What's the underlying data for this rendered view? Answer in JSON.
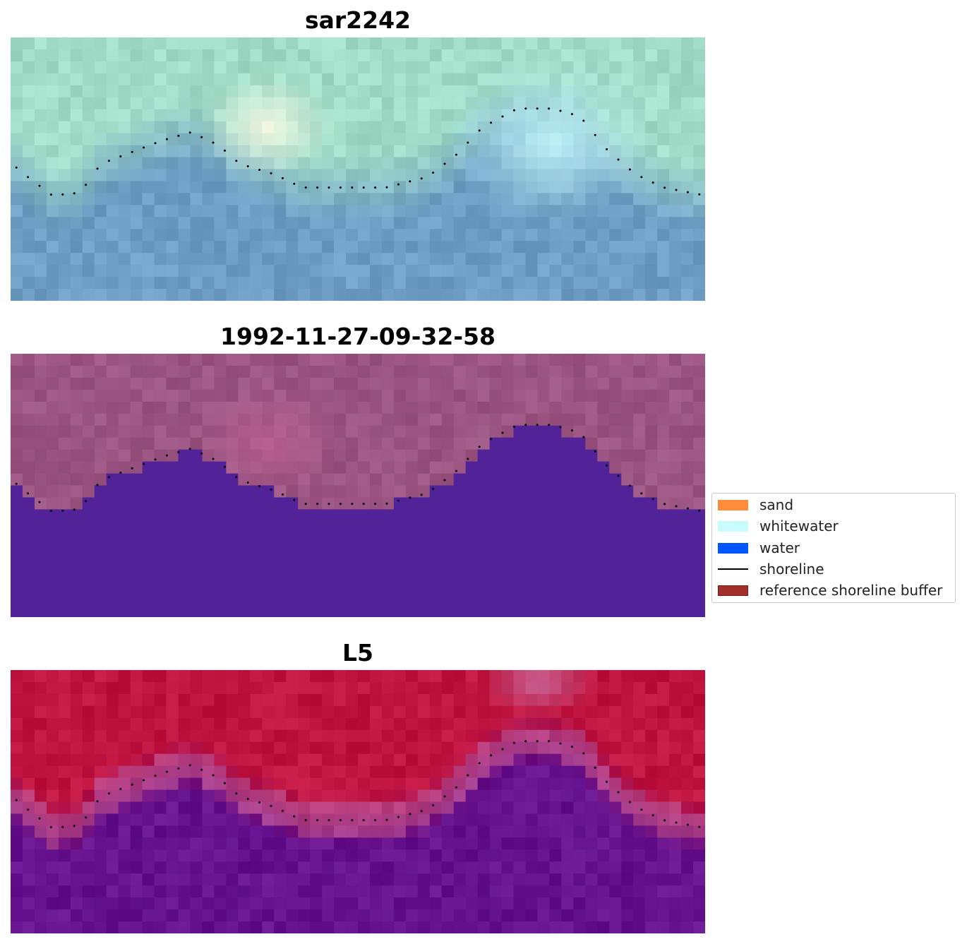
{
  "panels": [
    {
      "id": "rgb",
      "title": "sar2242"
    },
    {
      "id": "classified",
      "title": "1992-11-27-09-32-58"
    },
    {
      "id": "index",
      "title": "L5"
    }
  ],
  "legend": {
    "items": [
      {
        "label": "sand",
        "kind": "patch",
        "color": "#ff8c3a"
      },
      {
        "label": "whitewater",
        "kind": "patch",
        "color": "#c8fcfc"
      },
      {
        "label": "water",
        "kind": "patch",
        "color": "#0055ff"
      },
      {
        "label": "shoreline",
        "kind": "line",
        "color": "#000000"
      },
      {
        "label": "reference shoreline buffer",
        "kind": "patch",
        "color": "#a1302d",
        "edge": "#7a1a17"
      }
    ]
  },
  "colors": {
    "rgb_land": "#a0dcc8",
    "rgb_water": "#6e9ec4",
    "rgb_whitewater": "#c8fcfc",
    "classified_land": "#9a5582",
    "classified_water": "#522299",
    "index_land": "#c01440",
    "index_water": "#64128e"
  }
}
